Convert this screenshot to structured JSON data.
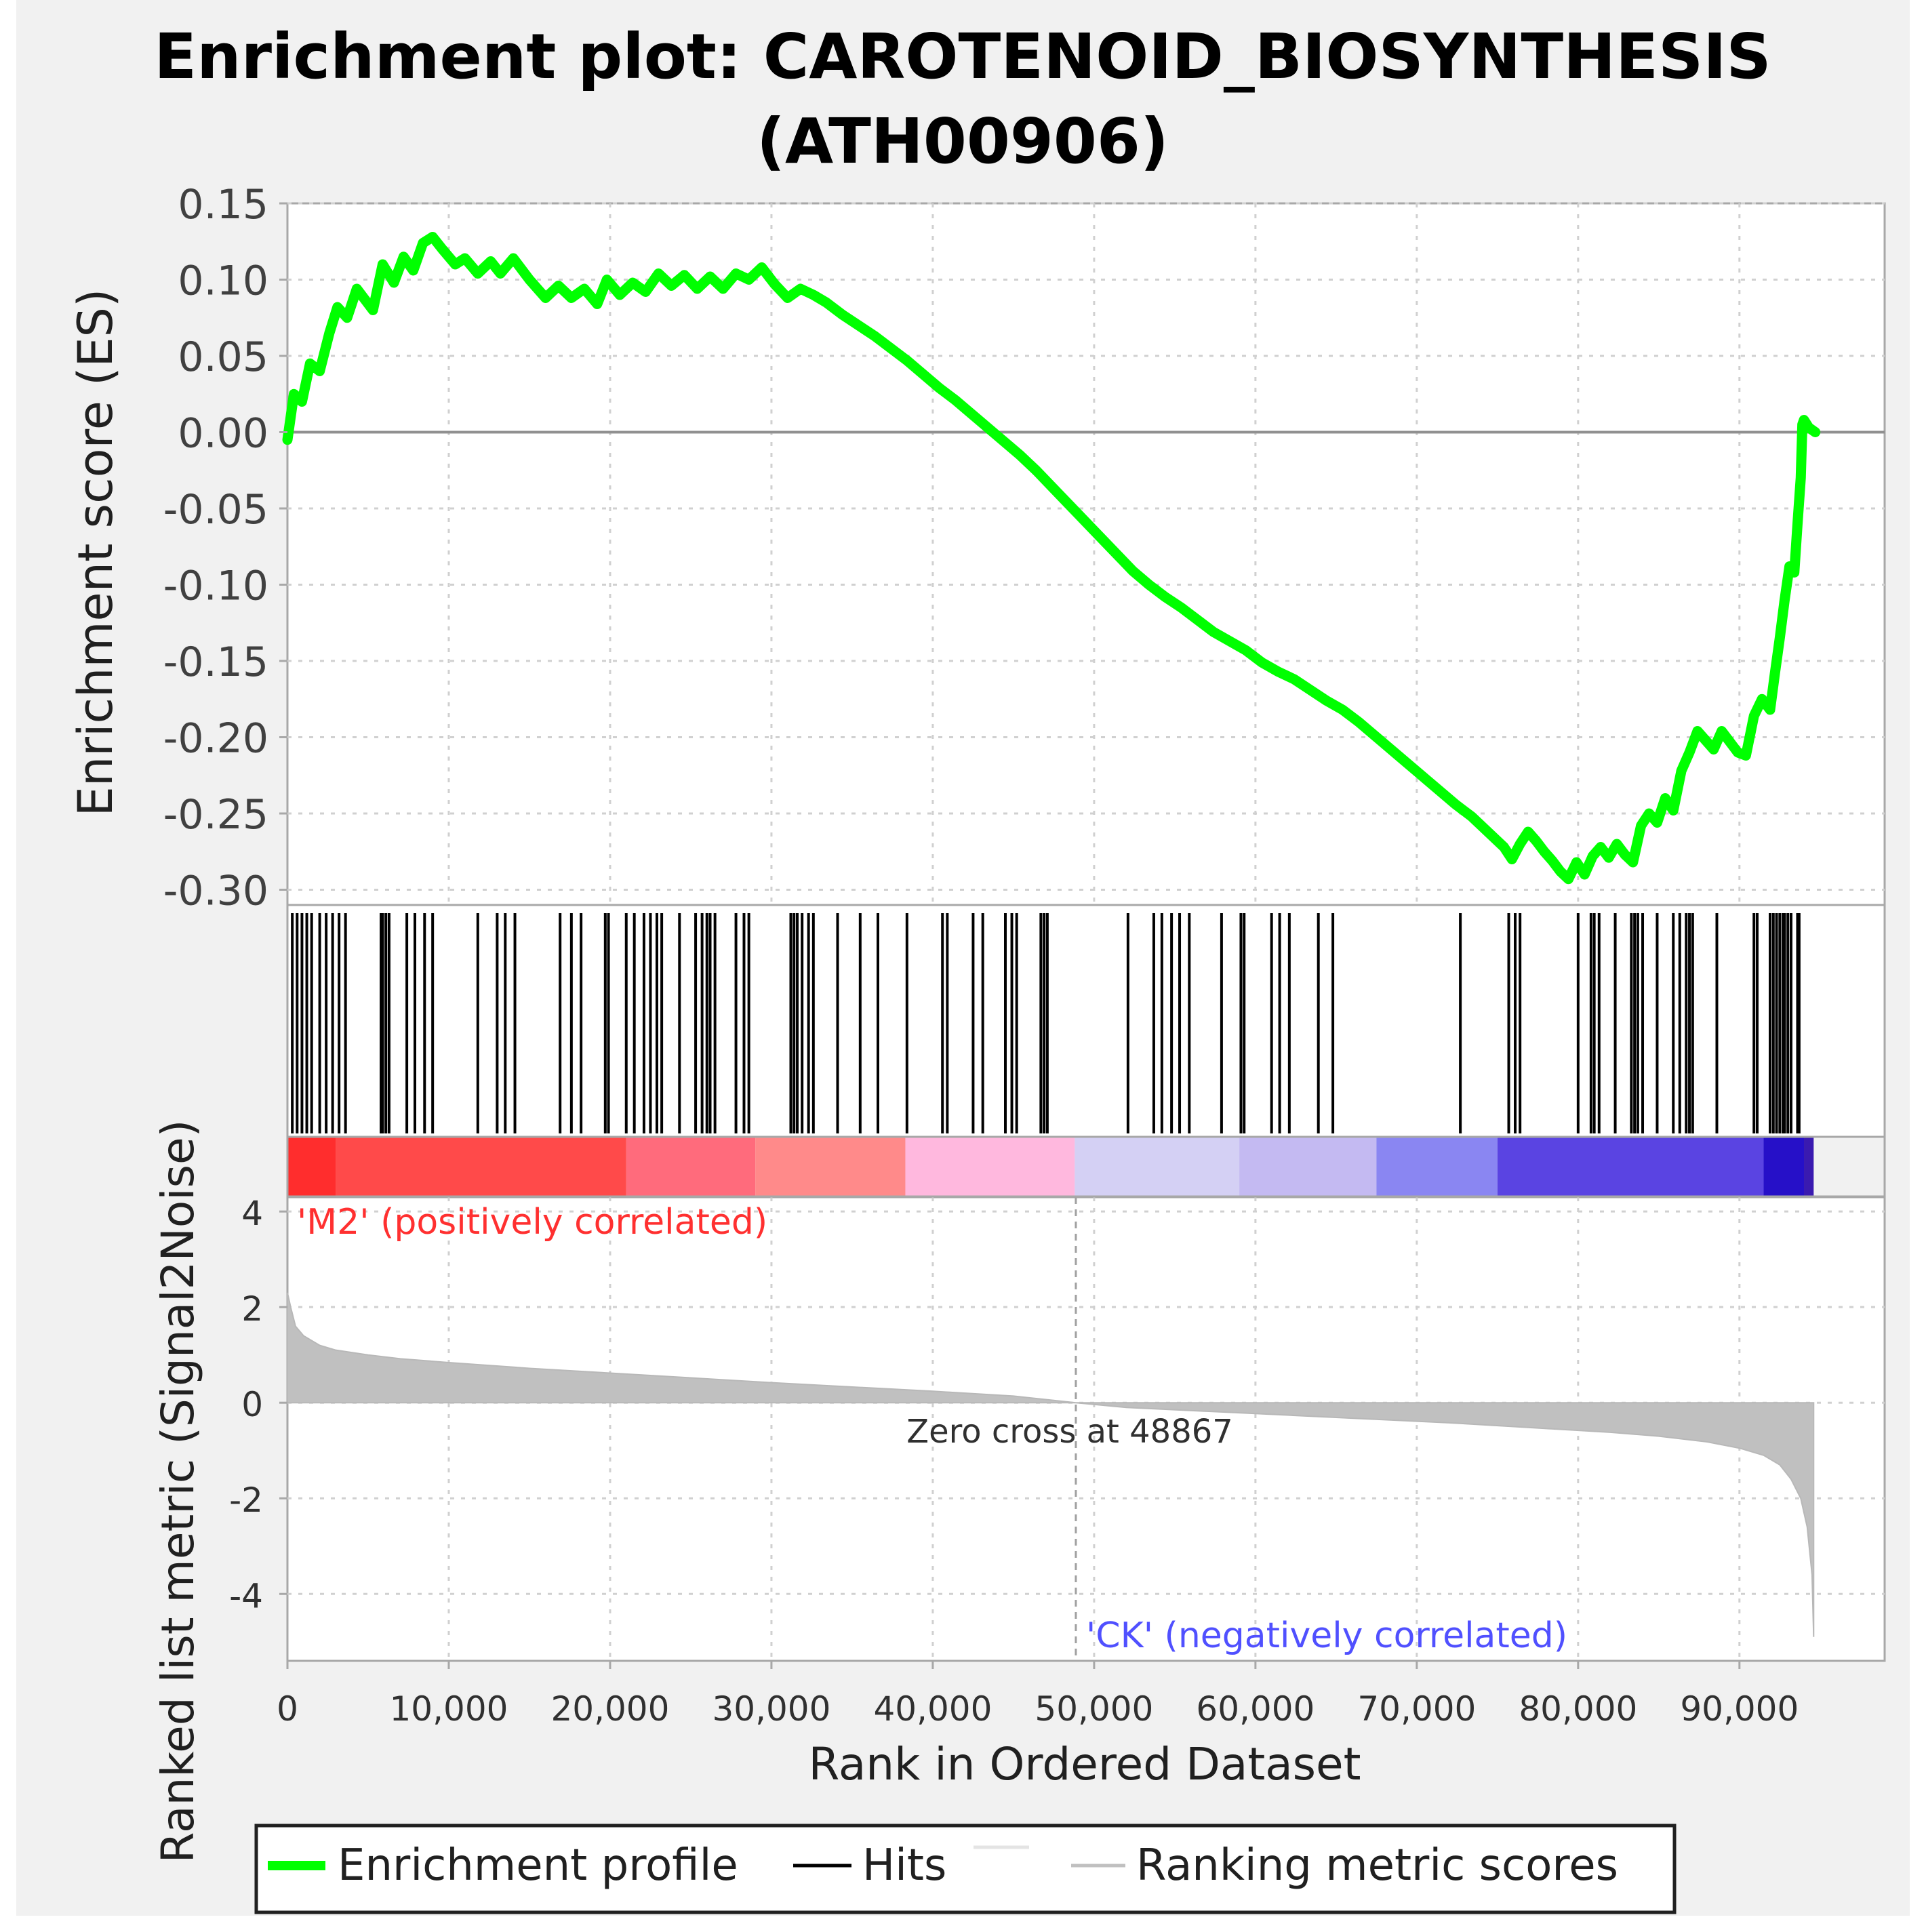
{
  "chart_data": {
    "type": "line",
    "title_line1": "Enrichment plot: CAROTENOID_BIOSYNTHESIS",
    "title_line2": "(ATH00906)",
    "xlabel": "Rank in Ordered Dataset",
    "xlim": [
      0,
      99000
    ],
    "x_ticks": [
      0,
      10000,
      20000,
      30000,
      40000,
      50000,
      60000,
      70000,
      80000,
      90000
    ],
    "x_tick_labels": [
      "0",
      "10,000",
      "20,000",
      "30,000",
      "40,000",
      "50,000",
      "60,000",
      "70,000",
      "80,000",
      "90,000"
    ],
    "es_panel": {
      "ylabel": "Enrichment score (ES)",
      "ylim": [
        -0.31,
        0.15
      ],
      "y_ticks": [
        0.15,
        0.1,
        0.05,
        0.0,
        -0.05,
        -0.1,
        -0.15,
        -0.2,
        -0.25,
        -0.3
      ],
      "y_tick_labels": [
        "0.15",
        "0.10",
        "0.05",
        "0.00",
        "-0.05",
        "-0.10",
        "-0.15",
        "-0.20",
        "-0.25",
        "-0.30"
      ],
      "series": {
        "name": "Enrichment profile",
        "color": "#00ff00",
        "x": [
          0,
          400,
          900,
          1400,
          2000,
          2600,
          3100,
          3700,
          4300,
          5300,
          5900,
          6600,
          7200,
          7800,
          8400,
          9000,
          9600,
          10400,
          11000,
          11800,
          12600,
          13200,
          14000,
          15000,
          16000,
          16800,
          17600,
          18400,
          19200,
          19800,
          20600,
          21400,
          22200,
          23000,
          23800,
          24600,
          25400,
          26200,
          27000,
          27800,
          28600,
          29400,
          30200,
          31000,
          31800,
          32600,
          33400,
          34400,
          35400,
          36400,
          37400,
          38400,
          39400,
          40400,
          41400,
          42400,
          43400,
          44400,
          45400,
          46400,
          47400,
          48400,
          49400,
          50400,
          51400,
          52400,
          53400,
          54400,
          55400,
          56400,
          57400,
          58400,
          59400,
          60400,
          61400,
          62400,
          63400,
          64400,
          65400,
          66400,
          67400,
          68400,
          69400,
          70400,
          71400,
          72400,
          73400,
          74400,
          75400,
          75900,
          76400,
          76900,
          77400,
          77900,
          78400,
          78900,
          79400,
          79900,
          80400,
          80900,
          81400,
          81900,
          82400,
          82900,
          83400,
          83900,
          84400,
          84900,
          85400,
          85900,
          86400,
          86900,
          87400,
          87900,
          88400,
          88900,
          89400,
          89900,
          90400,
          90900,
          91400,
          91900,
          92200,
          92500,
          92800,
          93100,
          93400,
          93600,
          93800,
          93900,
          94000,
          94300,
          94700
        ],
        "y": [
          -0.005,
          0.025,
          0.02,
          0.045,
          0.04,
          0.065,
          0.082,
          0.075,
          0.094,
          0.08,
          0.11,
          0.098,
          0.115,
          0.106,
          0.124,
          0.128,
          0.12,
          0.11,
          0.114,
          0.104,
          0.112,
          0.104,
          0.114,
          0.1,
          0.088,
          0.096,
          0.088,
          0.094,
          0.084,
          0.1,
          0.09,
          0.098,
          0.092,
          0.104,
          0.096,
          0.103,
          0.094,
          0.102,
          0.094,
          0.104,
          0.1,
          0.108,
          0.097,
          0.088,
          0.094,
          0.09,
          0.085,
          0.077,
          0.07,
          0.063,
          0.055,
          0.047,
          0.038,
          0.029,
          0.021,
          0.012,
          0.003,
          -0.006,
          -0.015,
          -0.025,
          -0.036,
          -0.047,
          -0.058,
          -0.069,
          -0.08,
          -0.091,
          -0.1,
          -0.108,
          -0.115,
          -0.123,
          -0.131,
          -0.137,
          -0.143,
          -0.151,
          -0.157,
          -0.162,
          -0.169,
          -0.176,
          -0.182,
          -0.19,
          -0.199,
          -0.208,
          -0.217,
          -0.226,
          -0.235,
          -0.244,
          -0.252,
          -0.262,
          -0.272,
          -0.28,
          -0.27,
          -0.262,
          -0.268,
          -0.275,
          -0.281,
          -0.288,
          -0.293,
          -0.282,
          -0.29,
          -0.278,
          -0.272,
          -0.279,
          -0.27,
          -0.277,
          -0.282,
          -0.258,
          -0.25,
          -0.256,
          -0.24,
          -0.248,
          -0.222,
          -0.21,
          -0.196,
          -0.202,
          -0.208,
          -0.196,
          -0.203,
          -0.21,
          -0.212,
          -0.186,
          -0.175,
          -0.182,
          -0.158,
          -0.135,
          -0.11,
          -0.088,
          -0.092,
          -0.06,
          -0.03,
          0.005,
          0.008,
          0.003,
          0.0
        ]
      }
    },
    "hits_panel": {
      "legend_name": "Hits",
      "color": "#000000",
      "hit_ranks": [
        300,
        600,
        900,
        1200,
        1500,
        2000,
        2400,
        2800,
        3200,
        3600,
        5800,
        5900,
        6100,
        6300,
        7400,
        7900,
        8500,
        9000,
        11800,
        13000,
        13500,
        14100,
        16900,
        17600,
        18200,
        19700,
        19900,
        21000,
        21500,
        22100,
        22500,
        22900,
        23200,
        24300,
        25300,
        25700,
        26000,
        26200,
        26500,
        27800,
        28300,
        28600,
        31200,
        31400,
        31600,
        31900,
        32300,
        32600,
        34100,
        35500,
        36600,
        38400,
        40600,
        40900,
        42500,
        43100,
        44500,
        44900,
        45200,
        46700,
        46900,
        47100,
        52100,
        53700,
        54200,
        54800,
        55300,
        55900,
        57900,
        59100,
        59300,
        61000,
        61500,
        62100,
        63900,
        64800,
        72700,
        75700,
        76100,
        76400,
        80000,
        80800,
        81000,
        81300,
        82300,
        83300,
        83500,
        83700,
        84000,
        84900,
        85900,
        86300,
        86700,
        86900,
        87100,
        88600,
        90900,
        91100,
        91900,
        92100,
        92300,
        92500,
        92700,
        92800,
        93000,
        93200,
        93600,
        93700
      ]
    },
    "color_bar": {
      "segments": [
        {
          "from": 0,
          "to": 3000,
          "color": "#ff2d2d"
        },
        {
          "from": 3000,
          "to": 21000,
          "color": "#ff4a4a"
        },
        {
          "from": 21000,
          "to": 29000,
          "color": "#ff6b7c"
        },
        {
          "from": 29000,
          "to": 38300,
          "color": "#ff8a8a"
        },
        {
          "from": 38300,
          "to": 48800,
          "color": "#ffb8de"
        },
        {
          "from": 48800,
          "to": 59000,
          "color": "#d4d0f4"
        },
        {
          "from": 59000,
          "to": 67500,
          "color": "#c4baf2"
        },
        {
          "from": 67500,
          "to": 75000,
          "color": "#8a86f2"
        },
        {
          "from": 75000,
          "to": 91500,
          "color": "#5a44e2"
        },
        {
          "from": 91500,
          "to": 94000,
          "color": "#2610c8"
        },
        {
          "from": 94000,
          "to": 94600,
          "color": "#3a1ab0"
        }
      ]
    },
    "metric_panel": {
      "ylabel": "Ranked list metric (Signal2Noise)",
      "ylim": [
        -5.4,
        4.3
      ],
      "y_ticks": [
        4,
        2,
        0,
        -2,
        -4
      ],
      "y_tick_labels": [
        "4",
        "2",
        "0",
        "-2",
        "-4"
      ],
      "series": {
        "name": "Ranking metric scores",
        "color": "#c0c0c0",
        "x": [
          0,
          200,
          500,
          1000,
          2000,
          3000,
          5000,
          7000,
          10000,
          15000,
          20000,
          25000,
          30000,
          35000,
          40000,
          45000,
          48867,
          52000,
          57000,
          62000,
          67000,
          72000,
          77000,
          82000,
          85000,
          88000,
          90000,
          91500,
          92500,
          93200,
          93800,
          94200,
          94500,
          94600
        ],
        "y": [
          2.3,
          2.0,
          1.6,
          1.4,
          1.2,
          1.1,
          1.0,
          0.92,
          0.84,
          0.72,
          0.62,
          0.52,
          0.42,
          0.33,
          0.24,
          0.14,
          0.0,
          -0.1,
          -0.18,
          -0.26,
          -0.34,
          -0.42,
          -0.52,
          -0.62,
          -0.7,
          -0.82,
          -0.95,
          -1.1,
          -1.3,
          -1.6,
          -2.0,
          -2.6,
          -3.6,
          -4.9
        ]
      },
      "zero_cross_label": "Zero cross at 48867",
      "zero_cross_rank": 48867,
      "pos_label": "'M2' (positively correlated)",
      "pos_color": "#ff3030",
      "neg_label": "'CK' (negatively correlated)",
      "neg_color": "#5050ff"
    },
    "legend": {
      "placement": "bottom",
      "items": [
        {
          "label": "Enrichment profile",
          "color": "#00ff00"
        },
        {
          "label": "Hits",
          "color": "#000000"
        },
        {
          "label": "Ranking metric scores",
          "color": "#c0c0c0"
        }
      ]
    }
  }
}
